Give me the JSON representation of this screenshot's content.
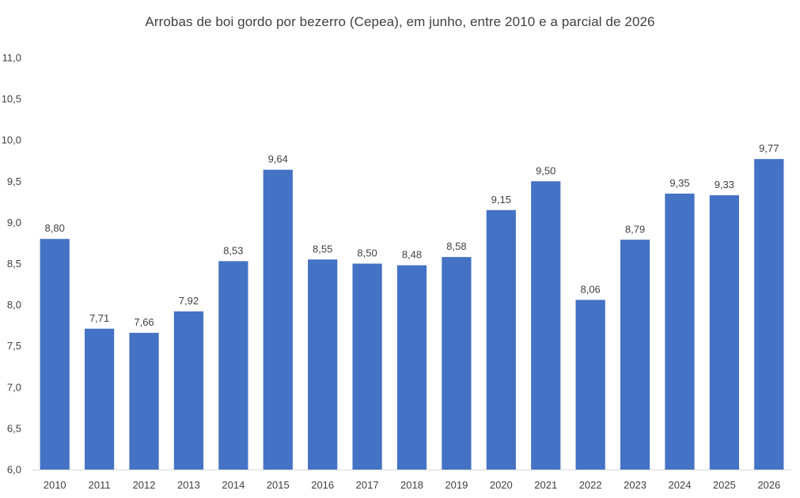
{
  "chart_data": {
    "type": "bar",
    "title": "Arrobas de boi gordo por bezerro (Cepea), em junho, entre 2010 e a parcial de 2026",
    "xlabel": "",
    "ylabel": "",
    "categories": [
      "2010",
      "2011",
      "2012",
      "2013",
      "2014",
      "2015",
      "2016",
      "2017",
      "2018",
      "2019",
      "2020",
      "2021",
      "2022",
      "2023",
      "2024",
      "2025",
      "2026"
    ],
    "values": [
      8.8,
      7.71,
      7.66,
      7.92,
      8.53,
      9.64,
      8.55,
      8.5,
      8.48,
      8.58,
      9.15,
      9.5,
      8.06,
      8.79,
      9.35,
      9.33,
      9.77
    ],
    "data_labels": [
      "8,80",
      "7,71",
      "7,66",
      "7,92",
      "8,53",
      "9,64",
      "8,55",
      "8,50",
      "8,48",
      "8,58",
      "9,15",
      "9,50",
      "8,06",
      "8,79",
      "9,35",
      "9,33",
      "9,77"
    ],
    "ylim": [
      6.0,
      11.0
    ],
    "yticks": [
      6.0,
      6.5,
      7.0,
      7.5,
      8.0,
      8.5,
      9.0,
      9.5,
      10.0,
      10.5,
      11.0
    ],
    "ytick_labels": [
      "6,0",
      "6,5",
      "7,0",
      "7,5",
      "8,0",
      "8,5",
      "9,0",
      "9,5",
      "10,0",
      "10,5",
      "11,0"
    ],
    "grid": false,
    "legend": "none",
    "bar_color": "#4472c4",
    "axis_color": "#d9d9d9"
  }
}
